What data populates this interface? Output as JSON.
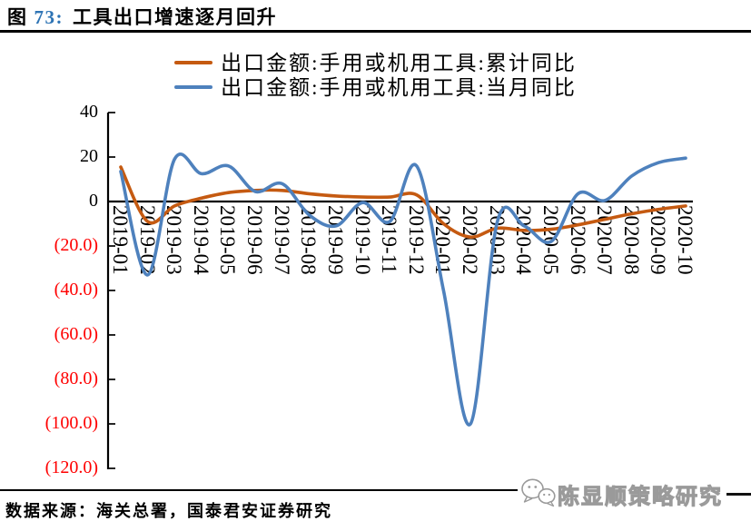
{
  "header": {
    "prefix": "图",
    "number": "73:",
    "title": "工具出口增速逐月回升"
  },
  "footer": {
    "source": "数据来源：海关总署，国泰君安证券研究",
    "watermark": "陈显顺策略研究",
    "watermark_icon": "wechat-bubbles-icon"
  },
  "colors": {
    "figure_number_blue": "#2E74B5",
    "negative_label_red": "#FF0000",
    "axis_black": "#000000",
    "cumulative_line": "#C55A11",
    "monthly_line": "#4E81BD",
    "watermark_gray": "#9A9A9A"
  },
  "chart_data": {
    "type": "line",
    "title": "工具出口增速逐月回升",
    "xlabel": "",
    "ylabel": "",
    "ylim": [
      -120,
      40
    ],
    "grid": false,
    "legend_position": "top-center",
    "line_style": "smooth",
    "categories": [
      "2019-01",
      "2019-02",
      "2019-03",
      "2019-04",
      "2019-05",
      "2019-06",
      "2019-07",
      "2019-08",
      "2019-09",
      "2019-10",
      "2019-11",
      "2019-12",
      "2020-01",
      "2020-02",
      "2020-03",
      "2020-04",
      "2020-05",
      "2020-06",
      "2020-07",
      "2020-08",
      "2020-09",
      "2020-10"
    ],
    "yticks": [
      {
        "value": 40,
        "label": "40"
      },
      {
        "value": 20,
        "label": "20"
      },
      {
        "value": 0,
        "label": "0"
      },
      {
        "value": -20,
        "label": "(20.0)"
      },
      {
        "value": -40,
        "label": "(40.0)"
      },
      {
        "value": -60,
        "label": "(60.0)"
      },
      {
        "value": -80,
        "label": "(80.0)"
      },
      {
        "value": -100,
        "label": "(100.0)"
      },
      {
        "value": -120,
        "label": "(120.0)"
      }
    ],
    "series": [
      {
        "id": "cumulative",
        "name": "出口金额:手用或机用工具:累计同比",
        "color": "#C55A11",
        "values": [
          15.5,
          -9,
          -2,
          1.5,
          4,
          5,
          5,
          3.5,
          2.5,
          2,
          2,
          3,
          -10,
          -16,
          -12,
          -13,
          -12.5,
          -10.5,
          -8,
          -5.5,
          -3.5,
          -2
        ]
      },
      {
        "id": "monthly",
        "name": "出口金额:手用或机用工具:当月同比",
        "color": "#4E81BD",
        "values": [
          13.5,
          -33,
          19,
          12.5,
          16,
          4.5,
          8,
          -6,
          -11,
          -0.5,
          -9,
          16,
          -40,
          -100,
          -9,
          -11,
          -18,
          3.5,
          0.5,
          11.5,
          17.5,
          19.5
        ]
      }
    ]
  }
}
